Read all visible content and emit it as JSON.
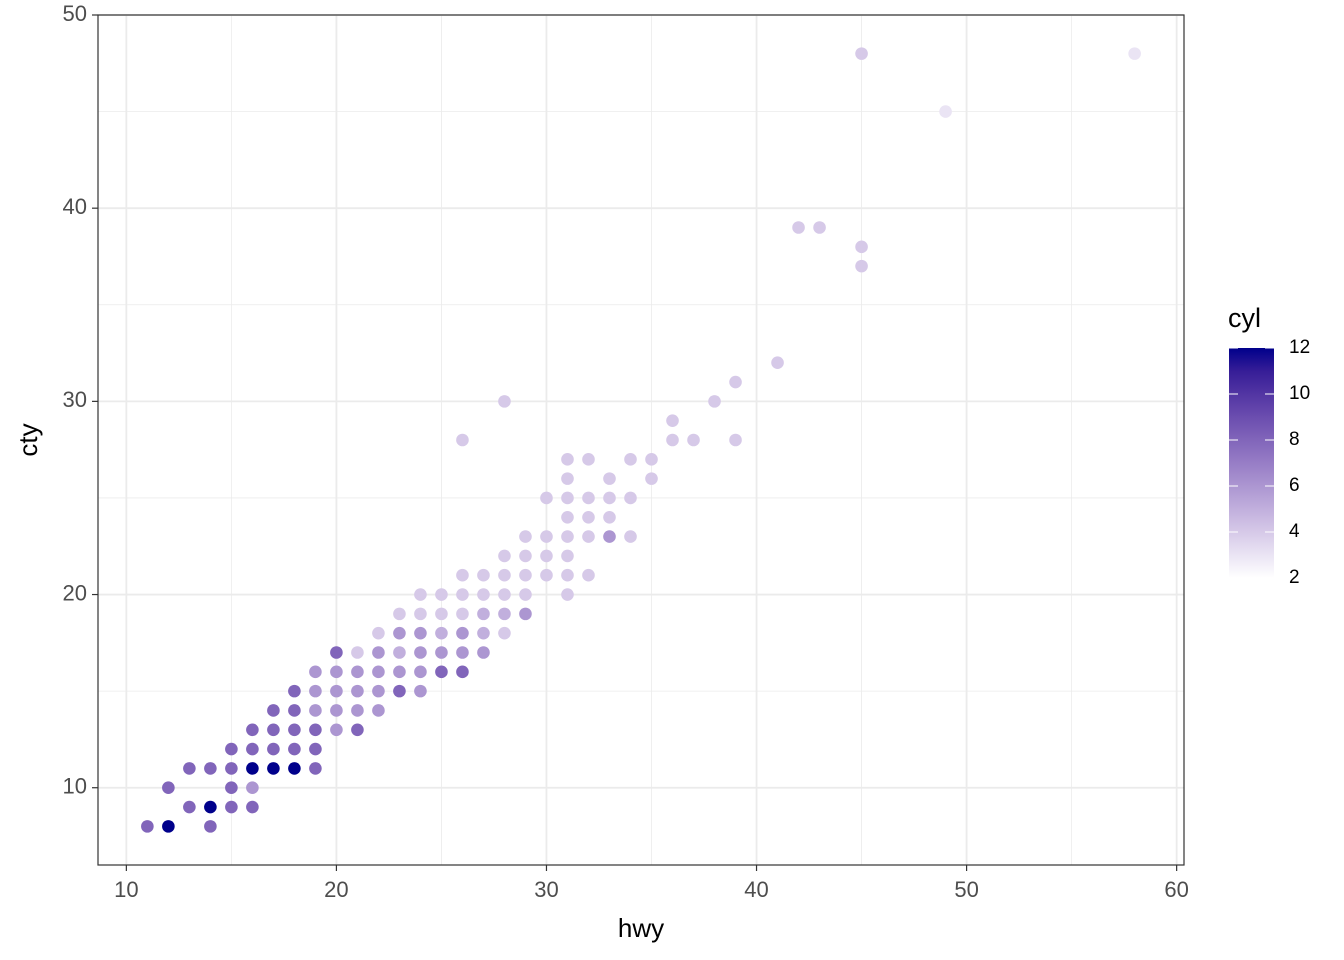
{
  "chart_data": {
    "type": "scatter",
    "x_label": "hwy",
    "y_label": "cty",
    "xlim": [
      8.65,
      60.35
    ],
    "ylim": [
      6,
      50
    ],
    "xticks": [
      10,
      20,
      30,
      40,
      50,
      60
    ],
    "yticks": [
      10,
      20,
      30,
      40,
      50
    ],
    "grid": true,
    "x": [
      11,
      12,
      12,
      13,
      13,
      14,
      14,
      14,
      15,
      15,
      15,
      15,
      16,
      16,
      16,
      16,
      16,
      17,
      17,
      17,
      17,
      18,
      18,
      18,
      18,
      18,
      19,
      19,
      19,
      19,
      19,
      19,
      20,
      20,
      20,
      20,
      20,
      21,
      21,
      21,
      21,
      21,
      22,
      22,
      22,
      22,
      22,
      23,
      23,
      23,
      23,
      23,
      24,
      24,
      24,
      24,
      24,
      24,
      25,
      25,
      25,
      25,
      25,
      26,
      26,
      26,
      26,
      26,
      26,
      26,
      27,
      27,
      27,
      27,
      27,
      28,
      28,
      28,
      28,
      28,
      28,
      29,
      29,
      29,
      29,
      29,
      30,
      30,
      30,
      30,
      31,
      31,
      31,
      31,
      31,
      31,
      31,
      31,
      32,
      32,
      32,
      32,
      32,
      33,
      33,
      33,
      33,
      34,
      34,
      34,
      35,
      35,
      36,
      36,
      37,
      38,
      39,
      39,
      41,
      42,
      43,
      45,
      45,
      45,
      49,
      58
    ],
    "values": [
      8,
      8,
      10,
      11,
      9,
      11,
      9,
      8,
      12,
      11,
      10,
      9,
      13,
      12,
      11,
      10,
      9,
      14,
      13,
      12,
      11,
      15,
      14,
      13,
      12,
      11,
      16,
      15,
      14,
      13,
      12,
      11,
      17,
      16,
      15,
      14,
      13,
      17,
      16,
      15,
      14,
      13,
      18,
      17,
      16,
      15,
      14,
      19,
      18,
      17,
      16,
      15,
      20,
      19,
      18,
      17,
      16,
      15,
      20,
      19,
      18,
      17,
      16,
      28,
      21,
      20,
      19,
      18,
      17,
      16,
      21,
      20,
      19,
      18,
      17,
      30,
      22,
      21,
      20,
      19,
      18,
      23,
      22,
      21,
      20,
      19,
      25,
      23,
      22,
      21,
      27,
      26,
      25,
      24,
      23,
      22,
      21,
      20,
      27,
      25,
      24,
      23,
      21,
      26,
      25,
      24,
      23,
      27,
      25,
      23,
      27,
      26,
      29,
      28,
      28,
      30,
      31,
      28,
      32,
      39,
      39,
      48,
      38,
      37,
      45,
      48
    ],
    "color_values": [
      8,
      12,
      8,
      8,
      8,
      8,
      12,
      8,
      8,
      8,
      8,
      8,
      8,
      8,
      12,
      6,
      8,
      8,
      8,
      8,
      12,
      8,
      8,
      8,
      8,
      12,
      6,
      6,
      6,
      8,
      8,
      8,
      8,
      6,
      6,
      6,
      6,
      4,
      6,
      6,
      6,
      8,
      4,
      6,
      6,
      6,
      6,
      4,
      6,
      5,
      6,
      8,
      4,
      4,
      6,
      6,
      6,
      6,
      4,
      4,
      5,
      6,
      8,
      4,
      4,
      4,
      4,
      6,
      6,
      8,
      4,
      4,
      5,
      5,
      6,
      4,
      4,
      4,
      4,
      5,
      4,
      4,
      4,
      4,
      4,
      6,
      4,
      4,
      4,
      4,
      4,
      4,
      4,
      4,
      4,
      4,
      4,
      4,
      4,
      4,
      4,
      4,
      4,
      4,
      4,
      4,
      6,
      4,
      4,
      4,
      4,
      4,
      4,
      4,
      4,
      4,
      4,
      4,
      4,
      4,
      4,
      4,
      4,
      4,
      3,
      3
    ],
    "color_legend": {
      "title": "cyl",
      "lim": [
        2,
        12
      ],
      "ticks": [
        2,
        4,
        6,
        8,
        10,
        12
      ],
      "low": "#FFFFFF",
      "high": "#00008B"
    }
  }
}
